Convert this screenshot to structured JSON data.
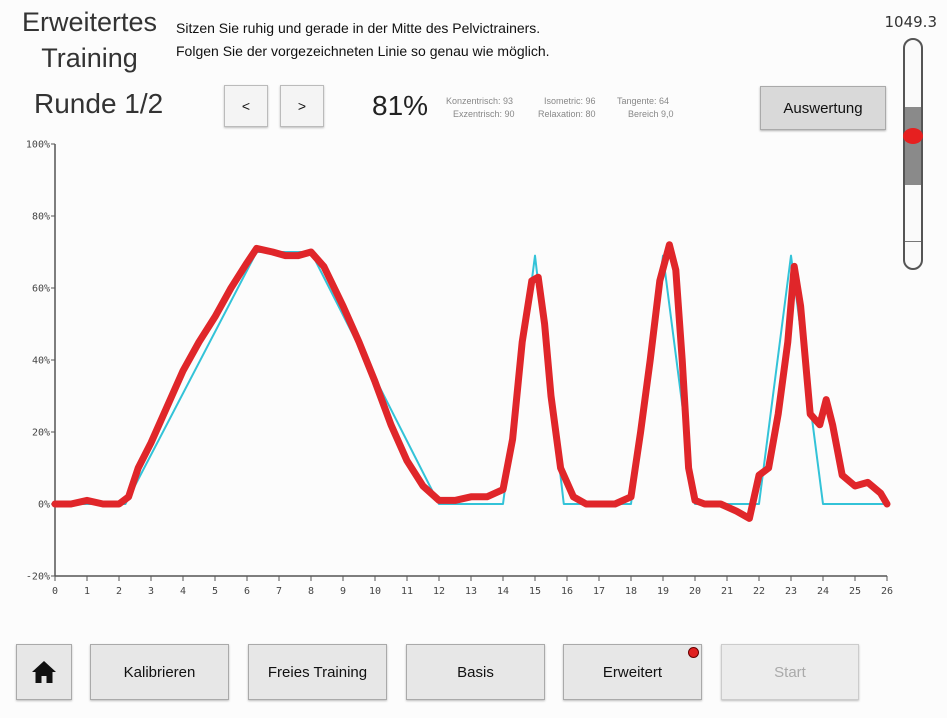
{
  "header": {
    "title_line1": "Erweitertes",
    "title_line2": "Training",
    "instruction_line1": "Sitzen Sie ruhig und gerade in der Mitte des Pelvictrainers.",
    "instruction_line2": "Folgen Sie der vorgezeichneten Linie so genau wie möglich.",
    "top_value": "1049.3"
  },
  "round": {
    "label": "Runde 1/2"
  },
  "nav": {
    "prev_label": "<",
    "next_label": ">"
  },
  "score": {
    "percent": "81%"
  },
  "stats": [
    {
      "label": "Konzentrisch: 93"
    },
    {
      "label": "Isometric: 96"
    },
    {
      "label": "Tangente: 64"
    },
    {
      "label": "Exzentrisch: 90"
    },
    {
      "label": "Relaxation: 80"
    },
    {
      "label": "Bereich 9,0"
    }
  ],
  "evaluate": {
    "label": "Auswertung"
  },
  "slider": {
    "value_fraction": 0.57
  },
  "bottom_nav": {
    "home_icon": "home-icon",
    "calibrate_label": "Kalibrieren",
    "free_training_label": "Freies Training",
    "basic_label": "Basis",
    "advanced_label": "Erweitert",
    "start_label": "Start",
    "start_enabled": false,
    "advanced_badge_color": "#e02020"
  },
  "chart_data": {
    "type": "line",
    "xlim": [
      0,
      26
    ],
    "ylim": [
      -20,
      100
    ],
    "x_ticks": [
      "0",
      "1",
      "2",
      "3",
      "4",
      "5",
      "6",
      "7",
      "8",
      "9",
      "10",
      "11",
      "12",
      "13",
      "14",
      "15",
      "16",
      "17",
      "18",
      "19",
      "20",
      "21",
      "22",
      "23",
      "24",
      "25",
      "26"
    ],
    "y_ticks": [
      {
        "value": 100,
        "label": "100%"
      },
      {
        "value": 80,
        "label": "80%"
      },
      {
        "value": 60,
        "label": "60%"
      },
      {
        "value": 40,
        "label": "40%"
      },
      {
        "value": 20,
        "label": "20%"
      },
      {
        "value": 0,
        "label": "0%"
      },
      {
        "value": -20,
        "label": "-20%"
      }
    ],
    "series": [
      {
        "color": "#33c3d8",
        "x": [
          0,
          2.2,
          6.3,
          8.0,
          12.0,
          14.0,
          15.0,
          15.9,
          18.0,
          19.0,
          20.0,
          22.0,
          23.0,
          24.0,
          26.0
        ],
        "y": [
          0,
          0,
          70,
          70,
          0,
          0,
          69,
          0,
          0,
          69,
          0,
          0,
          69,
          0,
          0
        ]
      },
      {
        "color": "#e0262a",
        "x": [
          0,
          0.5,
          1.0,
          1.5,
          2.0,
          2.3,
          2.6,
          3.0,
          3.5,
          4.0,
          4.5,
          5.0,
          5.5,
          6.0,
          6.3,
          6.8,
          7.2,
          7.6,
          8.0,
          8.4,
          9.0,
          9.5,
          10.0,
          10.5,
          11.0,
          11.5,
          12.0,
          12.5,
          13.0,
          13.5,
          14.0,
          14.3,
          14.6,
          14.9,
          15.1,
          15.3,
          15.5,
          15.8,
          16.2,
          16.6,
          17.0,
          17.5,
          18.0,
          18.3,
          18.6,
          18.9,
          19.2,
          19.4,
          19.6,
          19.8,
          20.0,
          20.3,
          20.8,
          21.3,
          21.7,
          22.0,
          22.3,
          22.6,
          22.9,
          23.1,
          23.3,
          23.6,
          23.9,
          24.1,
          24.3,
          24.6,
          25.0,
          25.4,
          25.8,
          26.0
        ],
        "y": [
          0,
          0,
          1,
          0,
          0,
          2,
          10,
          17,
          27,
          37,
          45,
          52,
          60,
          67,
          71,
          70,
          69,
          69,
          70,
          66,
          55,
          45,
          34,
          22,
          12,
          5,
          1,
          1,
          2,
          2,
          4,
          18,
          45,
          62,
          63,
          50,
          30,
          10,
          2,
          0,
          0,
          0,
          2,
          20,
          40,
          62,
          72,
          65,
          40,
          10,
          1,
          0,
          0,
          -2,
          -4,
          8,
          10,
          25,
          45,
          66,
          55,
          25,
          22,
          29,
          22,
          8,
          5,
          6,
          3,
          0
        ]
      }
    ]
  }
}
